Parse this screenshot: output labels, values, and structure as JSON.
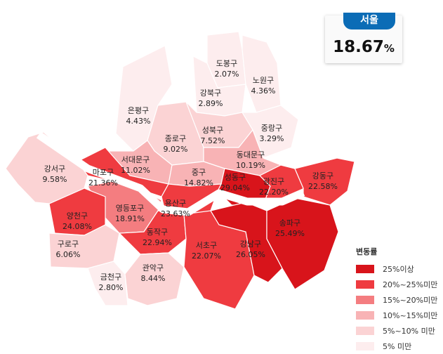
{
  "summary": {
    "region": "서울",
    "rate": "18.67",
    "unit": "%"
  },
  "legend": {
    "title": "변동률",
    "items": [
      {
        "label": "25%이상",
        "color": "#d8141b"
      },
      {
        "label": "20%~25%미만",
        "color": "#ef3b40"
      },
      {
        "label": "15%~20%미만",
        "color": "#f47d80"
      },
      {
        "label": "10%~15%미만",
        "color": "#f8b3b5"
      },
      {
        "label": "5%~10% 미만",
        "color": "#fbd3d4"
      },
      {
        "label": "5% 미만",
        "color": "#fdedee"
      }
    ]
  },
  "districts": [
    {
      "name": "도봉구",
      "rate": "2.07%",
      "bucket": 5
    },
    {
      "name": "노원구",
      "rate": "4.36%",
      "bucket": 5
    },
    {
      "name": "강북구",
      "rate": "2.89%",
      "bucket": 5
    },
    {
      "name": "은평구",
      "rate": "4.43%",
      "bucket": 5
    },
    {
      "name": "종로구",
      "rate": "9.02%",
      "bucket": 4
    },
    {
      "name": "성북구",
      "rate": "7.52%",
      "bucket": 4
    },
    {
      "name": "중랑구",
      "rate": "3.29%",
      "bucket": 5
    },
    {
      "name": "동대문구",
      "rate": "10.19%",
      "bucket": 3
    },
    {
      "name": "서대문구",
      "rate": "11.02%",
      "bucket": 3
    },
    {
      "name": "마포구",
      "rate": "21.36%",
      "bucket": 1
    },
    {
      "name": "중구",
      "rate": "14.82%",
      "bucket": 3
    },
    {
      "name": "성동구",
      "rate": "29.04%",
      "bucket": 0
    },
    {
      "name": "광진구",
      "rate": "22.20%",
      "bucket": 1
    },
    {
      "name": "강동구",
      "rate": "22.58%",
      "bucket": 1
    },
    {
      "name": "용산구",
      "rate": "23.63%",
      "bucket": 1
    },
    {
      "name": "영등포구",
      "rate": "18.91%",
      "bucket": 2
    },
    {
      "name": "양천구",
      "rate": "24.08%",
      "bucket": 1
    },
    {
      "name": "강서구",
      "rate": "9.58%",
      "bucket": 4
    },
    {
      "name": "구로구",
      "rate": "6.06%",
      "bucket": 4
    },
    {
      "name": "금천구",
      "rate": "2.80%",
      "bucket": 5
    },
    {
      "name": "동작구",
      "rate": "22.94%",
      "bucket": 1
    },
    {
      "name": "관악구",
      "rate": "8.44%",
      "bucket": 4
    },
    {
      "name": "서초구",
      "rate": "22.07%",
      "bucket": 1
    },
    {
      "name": "강남구",
      "rate": "26.05%",
      "bucket": 0
    },
    {
      "name": "송파구",
      "rate": "25.49%",
      "bucket": 0
    }
  ]
}
